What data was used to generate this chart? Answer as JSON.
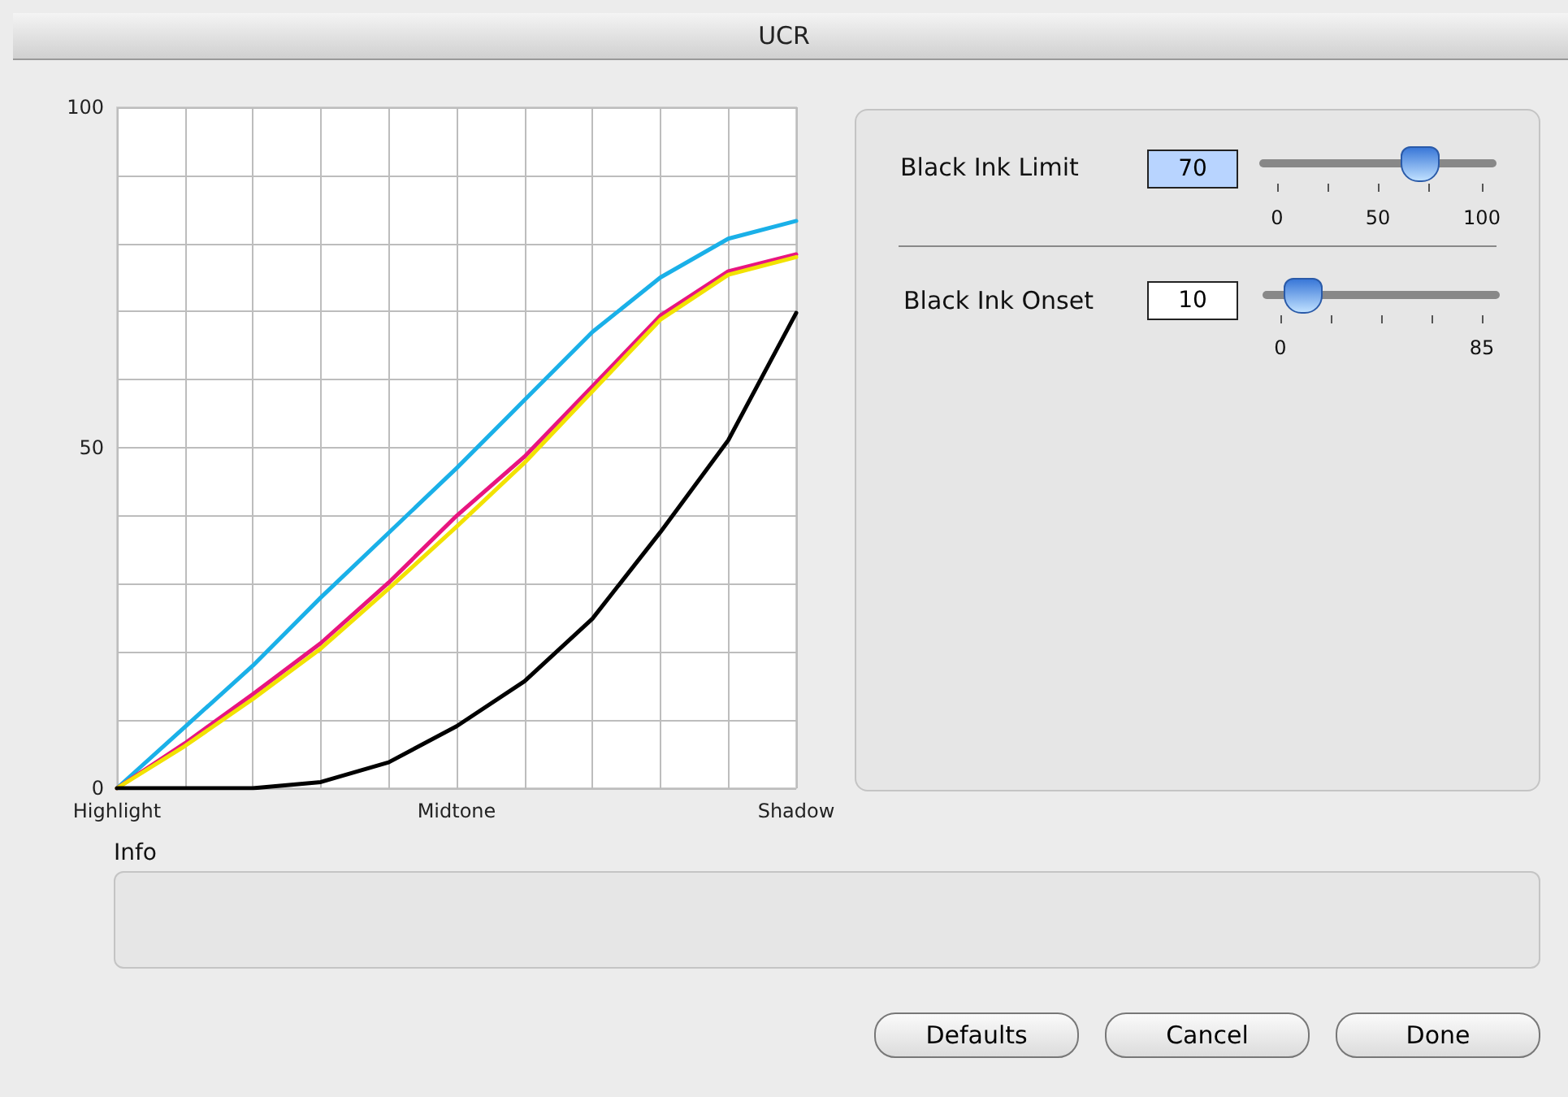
{
  "chart_data": [
    {
      "type": "line",
      "title": "UCR",
      "categories": [
        "Highlight",
        null,
        null,
        null,
        null,
        "Midtone",
        null,
        null,
        null,
        null,
        "Shadow"
      ],
      "series": [
        {
          "color": "#1ab0e8",
          "values": [
            0,
            9,
            18,
            28,
            37.5,
            47,
            57,
            67,
            75,
            80.7,
            83.3
          ]
        },
        {
          "color": "#e8157f",
          "values": [
            0,
            6.6,
            13.8,
            21.3,
            30.2,
            40,
            48.7,
            59,
            69.4,
            75.9,
            78.4
          ]
        },
        {
          "color": "#f2e200",
          "values": [
            0,
            6.2,
            13.1,
            20.5,
            29.3,
            38.4,
            47.8,
            58.3,
            68.8,
            75.4,
            78
          ]
        },
        {
          "color": "#000000",
          "values": [
            0,
            0,
            0,
            0.9,
            3.8,
            9.1,
            15.7,
            24.9,
            37.6,
            51.1,
            69.8
          ]
        }
      ],
      "ylim": [
        0,
        100
      ],
      "yticks": [
        0,
        {
          "value": 10,
          "label": null
        },
        {
          "value": 20,
          "label": null
        },
        {
          "value": 30,
          "label": null
        },
        {
          "value": 40,
          "label": null
        },
        50,
        {
          "value": 60,
          "label": null
        },
        {
          "value": 70,
          "label": null
        },
        {
          "value": 80,
          "label": null
        },
        {
          "value": 90,
          "label": null
        },
        100
      ],
      "grid": true,
      "marker": "none",
      "line_style": "solid"
    },
    {
      "type": "other",
      "annotations": [
        "Black Ink Limit",
        "70",
        "0",
        "50",
        "100",
        "Black Ink Onset",
        "10",
        "0",
        "85",
        "Info",
        "Defaults",
        "Cancel",
        "Done"
      ]
    }
  ]
}
